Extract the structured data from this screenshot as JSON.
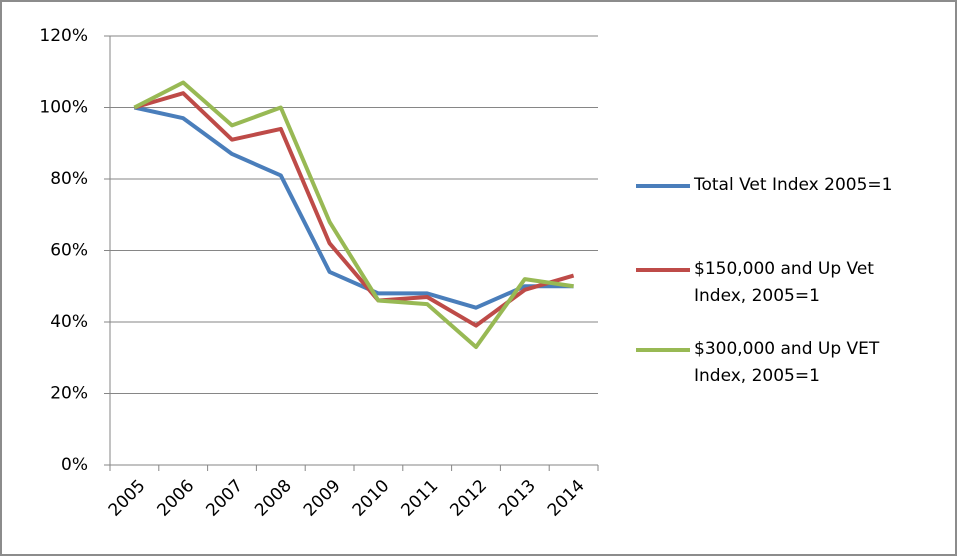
{
  "chart_data": {
    "type": "line",
    "categories": [
      "2005",
      "2006",
      "2007",
      "2008",
      "2009",
      "2010",
      "2011",
      "2012",
      "2013",
      "2014"
    ],
    "series": [
      {
        "name": "Total Vet Index 2005=1",
        "color": "#4a7ebb",
        "values": [
          100,
          97,
          87,
          81,
          54,
          48,
          48,
          44,
          50,
          50
        ]
      },
      {
        "name": "$150,000 and Up Vet Index, 2005=1",
        "color": "#be4b48",
        "values": [
          100,
          104,
          91,
          94,
          62,
          46,
          47,
          39,
          49,
          53
        ]
      },
      {
        "name": "$300,000 and Up VET Index, 2005=1",
        "color": "#98b954",
        "values": [
          100,
          107,
          95,
          100,
          68,
          46,
          45,
          33,
          52,
          50
        ]
      }
    ],
    "ylim": [
      0,
      120
    ],
    "yticks": [
      {
        "value": 0,
        "label": "0%"
      },
      {
        "value": 20,
        "label": "20%"
      },
      {
        "value": 40,
        "label": "40%"
      },
      {
        "value": 60,
        "label": "60%"
      },
      {
        "value": 80,
        "label": "80%"
      },
      {
        "value": 100,
        "label": "100%"
      },
      {
        "value": 120,
        "label": "120%"
      }
    ],
    "grid": true,
    "legend": "right"
  }
}
